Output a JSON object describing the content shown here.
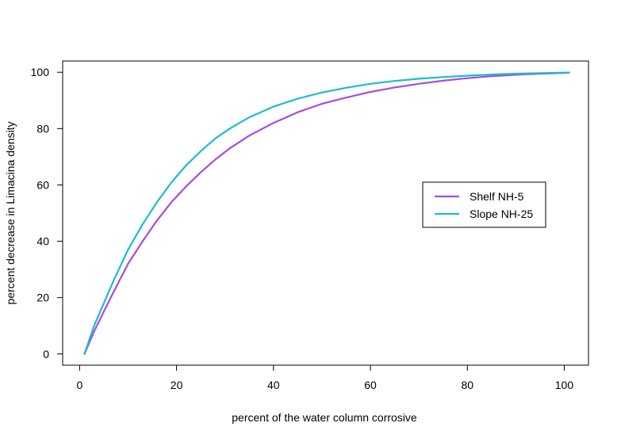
{
  "chart_data": {
    "type": "line",
    "title": "",
    "xlabel": "percent of the water column corrosive",
    "ylabel": "percent decrease in Limacina density",
    "xlim": [
      -3.5,
      105
    ],
    "ylim": [
      -4,
      104
    ],
    "xticks": [
      0,
      20,
      40,
      60,
      80,
      100
    ],
    "yticks": [
      0,
      20,
      40,
      60,
      80,
      100
    ],
    "grid": false,
    "legend_position": "center-right",
    "series": [
      {
        "name": "Shelf NH-5",
        "color": "#a64ae8",
        "x": [
          1,
          3,
          5,
          7,
          10,
          13,
          16,
          19,
          22,
          25,
          28,
          31,
          35,
          40,
          45,
          50,
          55,
          60,
          65,
          70,
          75,
          80,
          85,
          90,
          95,
          101
        ],
        "y": [
          0,
          8,
          15,
          22,
          32,
          40,
          47.5,
          54,
          59.5,
          64.5,
          69,
          73,
          77.5,
          82,
          85.8,
          88.8,
          91,
          93,
          94.6,
          95.9,
          97,
          97.9,
          98.6,
          99.1,
          99.5,
          99.8
        ]
      },
      {
        "name": "Slope NH-25",
        "color": "#1bbccd",
        "x": [
          1,
          3,
          5,
          7,
          10,
          13,
          16,
          19,
          22,
          25,
          28,
          31,
          35,
          40,
          45,
          50,
          55,
          60,
          65,
          70,
          75,
          80,
          85,
          90,
          95,
          101
        ],
        "y": [
          0,
          10,
          18,
          26,
          37,
          46,
          54,
          61,
          67,
          72,
          76.5,
          80,
          84,
          87.8,
          90.6,
          92.8,
          94.5,
          95.9,
          96.9,
          97.7,
          98.3,
          98.8,
          99.2,
          99.5,
          99.7,
          99.9
        ]
      }
    ]
  }
}
